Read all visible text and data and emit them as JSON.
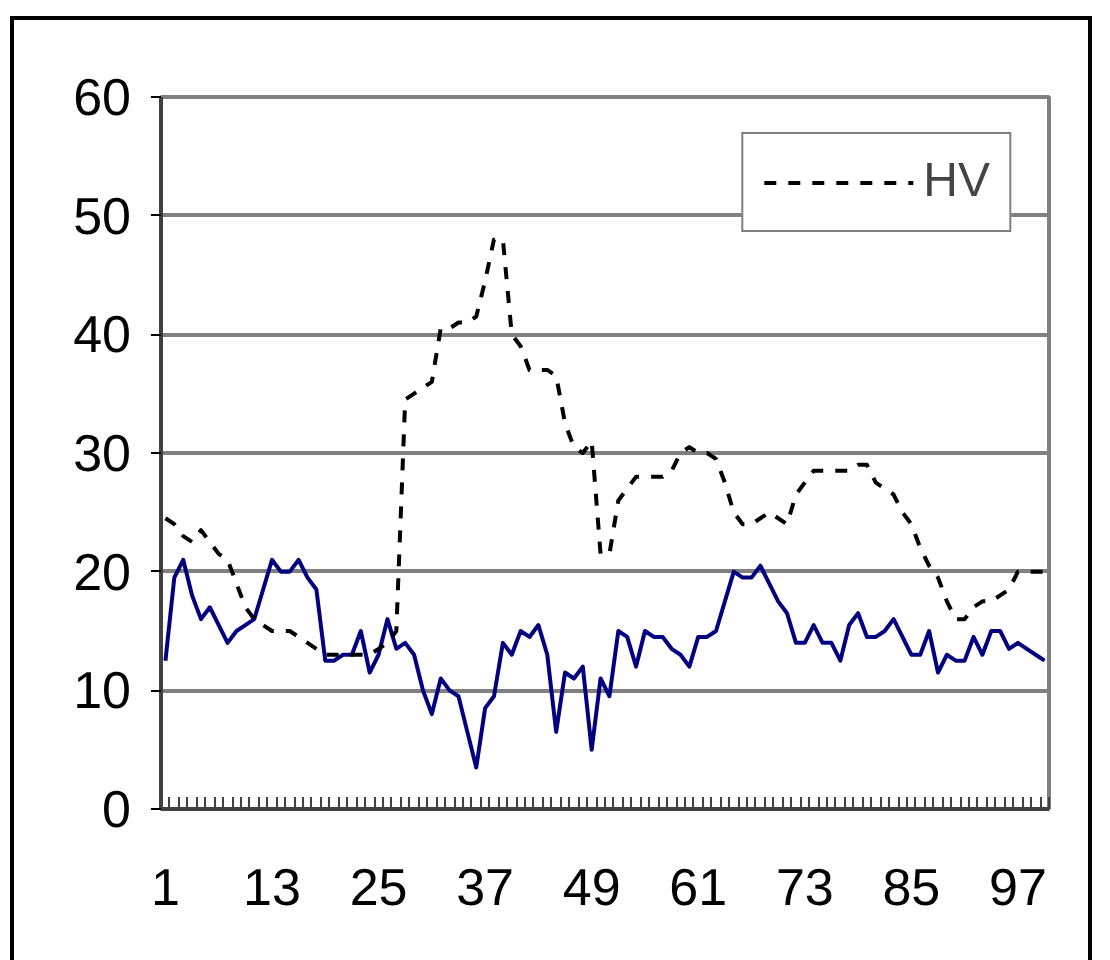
{
  "chart_data": {
    "type": "line",
    "categories": [
      "1",
      null,
      null,
      null,
      null,
      null,
      null,
      null,
      null,
      null,
      null,
      null,
      "13",
      null,
      null,
      null,
      null,
      null,
      null,
      null,
      null,
      null,
      null,
      null,
      "25",
      null,
      null,
      null,
      null,
      null,
      null,
      null,
      null,
      null,
      null,
      null,
      "37",
      null,
      null,
      null,
      null,
      null,
      null,
      null,
      null,
      null,
      null,
      null,
      "49",
      null,
      null,
      null,
      null,
      null,
      null,
      null,
      null,
      null,
      null,
      null,
      "61",
      null,
      null,
      null,
      null,
      null,
      null,
      null,
      null,
      null,
      null,
      null,
      "73",
      null,
      null,
      null,
      null,
      null,
      null,
      null,
      null,
      null,
      null,
      null,
      "85",
      null,
      null,
      null,
      null,
      null,
      null,
      null,
      null,
      null,
      null,
      null,
      "97",
      null,
      null,
      null
    ],
    "series": [
      {
        "color": "#000080",
        "line_style": "solid",
        "values": [
          12.5,
          19.5,
          21,
          18,
          16,
          17,
          15.5,
          14,
          15,
          15.5,
          16,
          18.5,
          21,
          20,
          20,
          21,
          19.5,
          18.5,
          12.5,
          12.5,
          13,
          13,
          15,
          11.5,
          13,
          16,
          13.5,
          14,
          13,
          10,
          8,
          11,
          10,
          9.5,
          6.5,
          3.5,
          8.5,
          9.5,
          14,
          13,
          15,
          14.5,
          15.5,
          13,
          6.5,
          11.5,
          11,
          12,
          5,
          11,
          9.5,
          15,
          14.5,
          12,
          15,
          14.5,
          14.5,
          13.5,
          13,
          12,
          14.5,
          14.5,
          15,
          17.5,
          20,
          19.5,
          19.5,
          20.5,
          19,
          17.5,
          16.5,
          14,
          14,
          15.5,
          14,
          14,
          12.5,
          15.5,
          16.5,
          14.5,
          14.5,
          15,
          16,
          14.5,
          13,
          13,
          15,
          11.5,
          13,
          12.5,
          12.5,
          14.5,
          13,
          15,
          15,
          13.5,
          14,
          13.5,
          13,
          12.5
        ]
      },
      {
        "name": "HV",
        "color": "#000000",
        "line_style": "dashed",
        "values": [
          24.5,
          24,
          23,
          22.5,
          23.5,
          22.5,
          21.5,
          21,
          19,
          17,
          16,
          15.5,
          15,
          15,
          15,
          14.5,
          14,
          13.5,
          13,
          13,
          13,
          13,
          13,
          13,
          13.5,
          14,
          15,
          34.5,
          35,
          35.5,
          36,
          40.5,
          40.5,
          41,
          41,
          41.5,
          44.5,
          48,
          48,
          40,
          39,
          37,
          37,
          37,
          36.5,
          32.5,
          30.5,
          30,
          31,
          21.5,
          21.5,
          26,
          27,
          28,
          28,
          28,
          28,
          28.5,
          30,
          30.5,
          30,
          30,
          29.5,
          27.5,
          25,
          24,
          24,
          24.5,
          25,
          24.5,
          24,
          26.5,
          27.5,
          28.5,
          28.5,
          28.5,
          28.5,
          28.5,
          29,
          29,
          27.5,
          27,
          26.5,
          25,
          24,
          22,
          20.5,
          19.5,
          17.5,
          16,
          16,
          17,
          17.5,
          17.5,
          18,
          18.5,
          20,
          20,
          20,
          20
        ]
      }
    ],
    "ylim": [
      0,
      60
    ],
    "yticks": [
      0,
      10,
      20,
      30,
      40,
      50,
      60
    ],
    "grid": "y",
    "legend": "top right"
  }
}
